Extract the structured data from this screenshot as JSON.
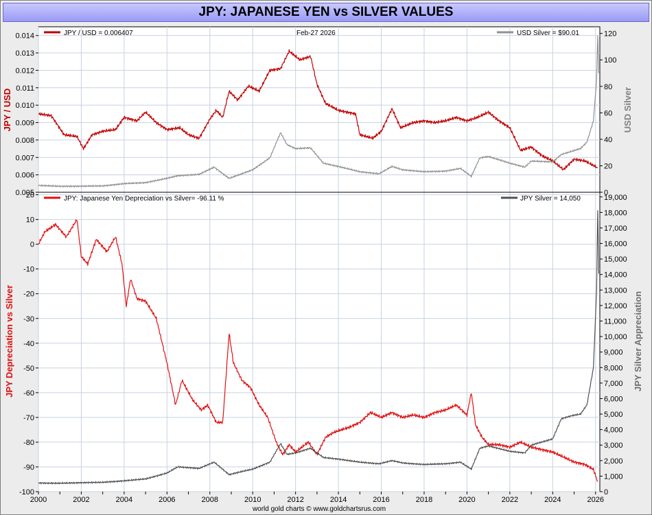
{
  "title": "JPY: JAPANESE YEN vs SILVER VALUES",
  "footer": "world gold charts © www.goldchartsrus.com",
  "colors": {
    "jpy": "#c00000",
    "jpy_bright": "#e01010",
    "silver_top": "#909090",
    "silver_bottom": "#505050",
    "grid": "#c8d0e0"
  },
  "chart_data": [
    {
      "type": "line",
      "panel": "top",
      "date_label": "Feb-27  2026",
      "x_ticks": [
        "2000",
        "2002",
        "2004",
        "2006",
        "2008",
        "2010",
        "2012",
        "2014",
        "2016",
        "2018",
        "2020",
        "2022",
        "2024",
        "2026"
      ],
      "left_axis": {
        "label": "JPY / USD",
        "ylim": [
          0.005,
          0.0145
        ],
        "ticks": [
          "0.005",
          "0.006",
          "0.007",
          "0.008",
          "0.009",
          "0.010",
          "0.011",
          "0.012",
          "0.013",
          "0.014"
        ]
      },
      "right_axis": {
        "label": "USD Silver",
        "ylim": [
          0,
          125
        ],
        "ticks": [
          "0",
          "20",
          "40",
          "60",
          "80",
          "100",
          "120"
        ]
      },
      "series": [
        {
          "name": "JPY / USD",
          "legend": "JPY / USD  = 0.006407",
          "axis": "left",
          "points": [
            [
              2000.0,
              0.0095
            ],
            [
              2000.6,
              0.0094
            ],
            [
              2001.2,
              0.0083
            ],
            [
              2001.8,
              0.0082
            ],
            [
              2002.1,
              0.0075
            ],
            [
              2002.5,
              0.0083
            ],
            [
              2003.0,
              0.0085
            ],
            [
              2003.6,
              0.0086
            ],
            [
              2004.0,
              0.0093
            ],
            [
              2004.6,
              0.0091
            ],
            [
              2005.0,
              0.0096
            ],
            [
              2005.5,
              0.009
            ],
            [
              2006.0,
              0.0086
            ],
            [
              2006.6,
              0.0087
            ],
            [
              2007.0,
              0.0083
            ],
            [
              2007.5,
              0.0081
            ],
            [
              2008.0,
              0.0092
            ],
            [
              2008.3,
              0.0097
            ],
            [
              2008.6,
              0.0093
            ],
            [
              2008.9,
              0.0108
            ],
            [
              2009.3,
              0.0103
            ],
            [
              2009.8,
              0.0111
            ],
            [
              2010.3,
              0.0108
            ],
            [
              2010.8,
              0.012
            ],
            [
              2011.3,
              0.0121
            ],
            [
              2011.7,
              0.0131
            ],
            [
              2012.2,
              0.0126
            ],
            [
              2012.7,
              0.0128
            ],
            [
              2013.0,
              0.0112
            ],
            [
              2013.4,
              0.0101
            ],
            [
              2014.0,
              0.0097
            ],
            [
              2014.8,
              0.0095
            ],
            [
              2015.0,
              0.0083
            ],
            [
              2015.6,
              0.0081
            ],
            [
              2016.0,
              0.0085
            ],
            [
              2016.5,
              0.0098
            ],
            [
              2016.9,
              0.0087
            ],
            [
              2017.5,
              0.009
            ],
            [
              2018.0,
              0.0091
            ],
            [
              2018.5,
              0.009
            ],
            [
              2019.0,
              0.0091
            ],
            [
              2019.5,
              0.0093
            ],
            [
              2020.0,
              0.0091
            ],
            [
              2020.5,
              0.0093
            ],
            [
              2021.0,
              0.0096
            ],
            [
              2021.5,
              0.0091
            ],
            [
              2022.0,
              0.0087
            ],
            [
              2022.5,
              0.0074
            ],
            [
              2023.0,
              0.0076
            ],
            [
              2023.5,
              0.0071
            ],
            [
              2024.0,
              0.0068
            ],
            [
              2024.5,
              0.0063
            ],
            [
              2025.0,
              0.0069
            ],
            [
              2025.5,
              0.0068
            ],
            [
              2026.1,
              0.0064
            ]
          ]
        },
        {
          "name": "USD Silver",
          "legend": "USD Silver  = $90.01",
          "axis": "right",
          "points": [
            [
              2000.0,
              5.2
            ],
            [
              2001.0,
              4.5
            ],
            [
              2002.0,
              4.6
            ],
            [
              2003.0,
              4.8
            ],
            [
              2004.0,
              6.5
            ],
            [
              2005.0,
              7.3
            ],
            [
              2006.0,
              10.5
            ],
            [
              2006.5,
              12.5
            ],
            [
              2007.5,
              13.5
            ],
            [
              2008.2,
              19.0
            ],
            [
              2008.9,
              10.5
            ],
            [
              2009.5,
              14.0
            ],
            [
              2010.0,
              17.0
            ],
            [
              2010.8,
              26.0
            ],
            [
              2011.3,
              45.0
            ],
            [
              2011.6,
              36.0
            ],
            [
              2012.0,
              33.0
            ],
            [
              2012.7,
              33.5
            ],
            [
              2013.3,
              22.0
            ],
            [
              2014.0,
              19.5
            ],
            [
              2015.0,
              15.5
            ],
            [
              2015.9,
              14.0
            ],
            [
              2016.5,
              19.5
            ],
            [
              2017.0,
              17.0
            ],
            [
              2018.0,
              15.5
            ],
            [
              2019.0,
              16.0
            ],
            [
              2019.7,
              18.0
            ],
            [
              2020.2,
              12.0
            ],
            [
              2020.6,
              26.0
            ],
            [
              2021.0,
              27.0
            ],
            [
              2022.0,
              22.0
            ],
            [
              2022.7,
              19.0
            ],
            [
              2023.0,
              23.5
            ],
            [
              2024.0,
              23.0
            ],
            [
              2024.4,
              28.5
            ],
            [
              2024.9,
              31.0
            ],
            [
              2025.3,
              33.0
            ],
            [
              2025.6,
              38.0
            ],
            [
              2025.9,
              54.0
            ],
            [
              2026.05,
              85.0
            ],
            [
              2026.1,
              118.0
            ],
            [
              2026.15,
              90.0
            ]
          ]
        }
      ]
    },
    {
      "type": "line",
      "panel": "bottom",
      "footer": "world gold charts © www.goldchartsrus.com",
      "x_ticks": [
        "2000",
        "2002",
        "2004",
        "2006",
        "2008",
        "2010",
        "2012",
        "2014",
        "2016",
        "2018",
        "2020",
        "2022",
        "2024",
        "2026"
      ],
      "left_axis": {
        "label": "JPY Depreciation vs Silver",
        "ylim": [
          -100,
          21
        ],
        "ticks": [
          "-100",
          "-90",
          "-80",
          "-70",
          "-60",
          "-50",
          "-40",
          "-30",
          "-20",
          "-10",
          "0",
          "10",
          "20"
        ]
      },
      "right_axis": {
        "label": "JPY Silver Appreciation",
        "ylim": [
          0,
          19300
        ],
        "ticks": [
          "0",
          "1,000",
          "2,000",
          "3,000",
          "4,000",
          "5,000",
          "6,000",
          "7,000",
          "8,000",
          "9,000",
          "10,000",
          "11,000",
          "12,000",
          "13,000",
          "14,000",
          "15,000",
          "16,000",
          "17,000",
          "18,000",
          "19,000"
        ]
      },
      "series": [
        {
          "name": "JPY: Japanese Yen Depreciation vs Silver",
          "legend": "JPY: Japanese Yen Depreciation vs Silver= -96.11 %",
          "axis": "left",
          "points": [
            [
              2000.0,
              0
            ],
            [
              2000.3,
              5
            ],
            [
              2000.8,
              8
            ],
            [
              2001.3,
              3
            ],
            [
              2001.8,
              10
            ],
            [
              2002.0,
              -5
            ],
            [
              2002.3,
              -8
            ],
            [
              2002.7,
              2
            ],
            [
              2003.2,
              -3
            ],
            [
              2003.6,
              3
            ],
            [
              2003.9,
              -8
            ],
            [
              2004.1,
              -25
            ],
            [
              2004.3,
              -14
            ],
            [
              2004.6,
              -22
            ],
            [
              2005.0,
              -23
            ],
            [
              2005.5,
              -30
            ],
            [
              2006.0,
              -48
            ],
            [
              2006.4,
              -65
            ],
            [
              2006.7,
              -55
            ],
            [
              2007.2,
              -63
            ],
            [
              2007.6,
              -67
            ],
            [
              2007.9,
              -65
            ],
            [
              2008.3,
              -72
            ],
            [
              2008.6,
              -72
            ],
            [
              2008.9,
              -36
            ],
            [
              2009.1,
              -48
            ],
            [
              2009.5,
              -55
            ],
            [
              2009.9,
              -58
            ],
            [
              2010.3,
              -65
            ],
            [
              2010.7,
              -70
            ],
            [
              2011.1,
              -80
            ],
            [
              2011.4,
              -85
            ],
            [
              2011.7,
              -81
            ],
            [
              2012.0,
              -84
            ],
            [
              2012.6,
              -80
            ],
            [
              2013.0,
              -85
            ],
            [
              2013.4,
              -78
            ],
            [
              2013.8,
              -76
            ],
            [
              2014.5,
              -74
            ],
            [
              2015.0,
              -72
            ],
            [
              2015.5,
              -68
            ],
            [
              2016.0,
              -70
            ],
            [
              2016.5,
              -68
            ],
            [
              2017.0,
              -70
            ],
            [
              2017.5,
              -69
            ],
            [
              2018.0,
              -70
            ],
            [
              2018.5,
              -68
            ],
            [
              2019.0,
              -67
            ],
            [
              2019.5,
              -65
            ],
            [
              2020.0,
              -69
            ],
            [
              2020.2,
              -60
            ],
            [
              2020.4,
              -73
            ],
            [
              2020.7,
              -78
            ],
            [
              2021.0,
              -81
            ],
            [
              2021.5,
              -81
            ],
            [
              2022.0,
              -82
            ],
            [
              2022.5,
              -80
            ],
            [
              2023.0,
              -82
            ],
            [
              2023.5,
              -83
            ],
            [
              2024.0,
              -84
            ],
            [
              2024.5,
              -86
            ],
            [
              2025.0,
              -88
            ],
            [
              2025.5,
              -89
            ],
            [
              2025.9,
              -91
            ],
            [
              2026.1,
              -96
            ]
          ]
        },
        {
          "name": "JPY Silver",
          "legend": "JPY Silver  = 14,050",
          "axis": "right",
          "points": [
            [
              2000.0,
              560
            ],
            [
              2001.0,
              540
            ],
            [
              2002.0,
              580
            ],
            [
              2003.0,
              600
            ],
            [
              2004.0,
              700
            ],
            [
              2005.0,
              820
            ],
            [
              2006.0,
              1200
            ],
            [
              2006.5,
              1600
            ],
            [
              2007.5,
              1500
            ],
            [
              2008.2,
              1900
            ],
            [
              2008.9,
              1100
            ],
            [
              2009.5,
              1300
            ],
            [
              2010.0,
              1450
            ],
            [
              2010.8,
              1900
            ],
            [
              2011.3,
              3100
            ],
            [
              2011.6,
              2400
            ],
            [
              2012.0,
              2500
            ],
            [
              2012.7,
              2800
            ],
            [
              2013.3,
              2200
            ],
            [
              2014.0,
              2100
            ],
            [
              2015.0,
              1900
            ],
            [
              2015.9,
              1800
            ],
            [
              2016.5,
              2000
            ],
            [
              2017.0,
              1850
            ],
            [
              2018.0,
              1750
            ],
            [
              2019.0,
              1800
            ],
            [
              2019.7,
              1900
            ],
            [
              2020.2,
              1450
            ],
            [
              2020.6,
              2800
            ],
            [
              2021.0,
              2950
            ],
            [
              2022.0,
              2600
            ],
            [
              2022.7,
              2500
            ],
            [
              2023.0,
              3000
            ],
            [
              2024.0,
              3400
            ],
            [
              2024.4,
              4700
            ],
            [
              2024.9,
              4900
            ],
            [
              2025.3,
              5000
            ],
            [
              2025.6,
              5600
            ],
            [
              2025.9,
              8000
            ],
            [
              2026.05,
              13000
            ],
            [
              2026.1,
              18100
            ],
            [
              2026.15,
              14050
            ]
          ]
        }
      ]
    }
  ]
}
